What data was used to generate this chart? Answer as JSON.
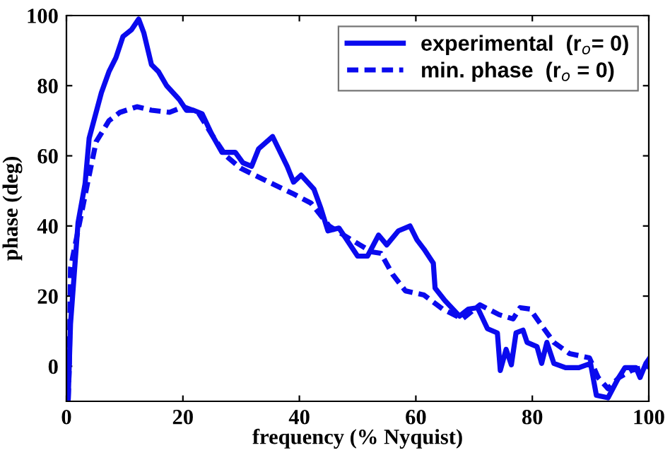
{
  "chart_data": {
    "type": "line",
    "xlabel": "frequency (% Nyquist)",
    "ylabel": "phase (deg)",
    "xlim": [
      0,
      100
    ],
    "ylim": [
      -10,
      100
    ],
    "xticks": [
      0,
      20,
      40,
      60,
      80,
      100
    ],
    "yticks": [
      0,
      20,
      40,
      60,
      80,
      100
    ],
    "grid": false,
    "legend": "top right",
    "marker": "none",
    "series": [
      {
        "name": "experimental  (r$_{o}$= 0)",
        "color": "#0a0aee",
        "line_style": "solid",
        "x": [
          0.3,
          0.7,
          2,
          3.2,
          3.9,
          6,
          7.3,
          8.5,
          9.7,
          11.2,
          12.4,
          13.3,
          14.6,
          15.8,
          17.2,
          19.4,
          20.6,
          21.8,
          23.3,
          25,
          26.7,
          29,
          30.3,
          31.8,
          33,
          35.4,
          37.9,
          39,
          40.3,
          42.5,
          43.7,
          44.9,
          46.8,
          50,
          51.7,
          53.6,
          55,
          57,
          59,
          60.2,
          61.4,
          63,
          63.3,
          65,
          67.5,
          69,
          70.6,
          72.3,
          74,
          74.5,
          75.5,
          76.4,
          77.2,
          78.4,
          79.1,
          80.8,
          81.6,
          82.5,
          83.7,
          85.7,
          88,
          90,
          91,
          93,
          94.7,
          95.9,
          97.8,
          98.5,
          99.5,
          100
        ],
        "values": [
          -9.5,
          12,
          41,
          52,
          65,
          78,
          84,
          88,
          94,
          96,
          99,
          95,
          86,
          84,
          80,
          76,
          73,
          73,
          72,
          66,
          61,
          61,
          58,
          57,
          62,
          65.5,
          57,
          52.5,
          54.5,
          50.5,
          45,
          38.6,
          39.4,
          31.4,
          31.4,
          37.4,
          34.6,
          38.6,
          40,
          36,
          33.4,
          29.4,
          22.3,
          18.7,
          14.3,
          16.3,
          16.7,
          10.7,
          9.5,
          -1.2,
          4.8,
          0.4,
          9.5,
          10.3,
          6.8,
          5.6,
          0.8,
          6.8,
          0.8,
          -0.4,
          -0.4,
          0.8,
          -8.3,
          -9,
          -3.6,
          -0.4,
          -0.4,
          -3.2,
          0.8,
          2
        ]
      },
      {
        "name": "min. phase  (r$_{o}$ = 0)",
        "color": "#0a0aee",
        "line_style": "dashed",
        "x": [
          0.3,
          0.5,
          0.7,
          3.6,
          5.1,
          7.3,
          9.2,
          12.1,
          14.6,
          17.7,
          20.1,
          22.6,
          25,
          27.4,
          29.9,
          32.3,
          35.4,
          38.8,
          42,
          45.1,
          47.6,
          52.4,
          54,
          56,
          58.2,
          61.4,
          64.6,
          68,
          71,
          74.3,
          76.7,
          77.9,
          79.6,
          82,
          83.7,
          86.4,
          89.8,
          91.3,
          93,
          94.9,
          97,
          100
        ],
        "values": [
          -9.5,
          0.4,
          28,
          52,
          64,
          70,
          72.4,
          74,
          73,
          72.4,
          74,
          72.4,
          66,
          60,
          56.5,
          54.5,
          52,
          49.3,
          46.5,
          40,
          37.4,
          32.6,
          32.2,
          26.2,
          21.5,
          20.3,
          16.3,
          13.5,
          17.5,
          14.7,
          13.5,
          16.7,
          16.3,
          10.7,
          6.8,
          3.6,
          2.4,
          -3.2,
          -6.4,
          -3.2,
          -1.2,
          0
        ]
      }
    ]
  }
}
